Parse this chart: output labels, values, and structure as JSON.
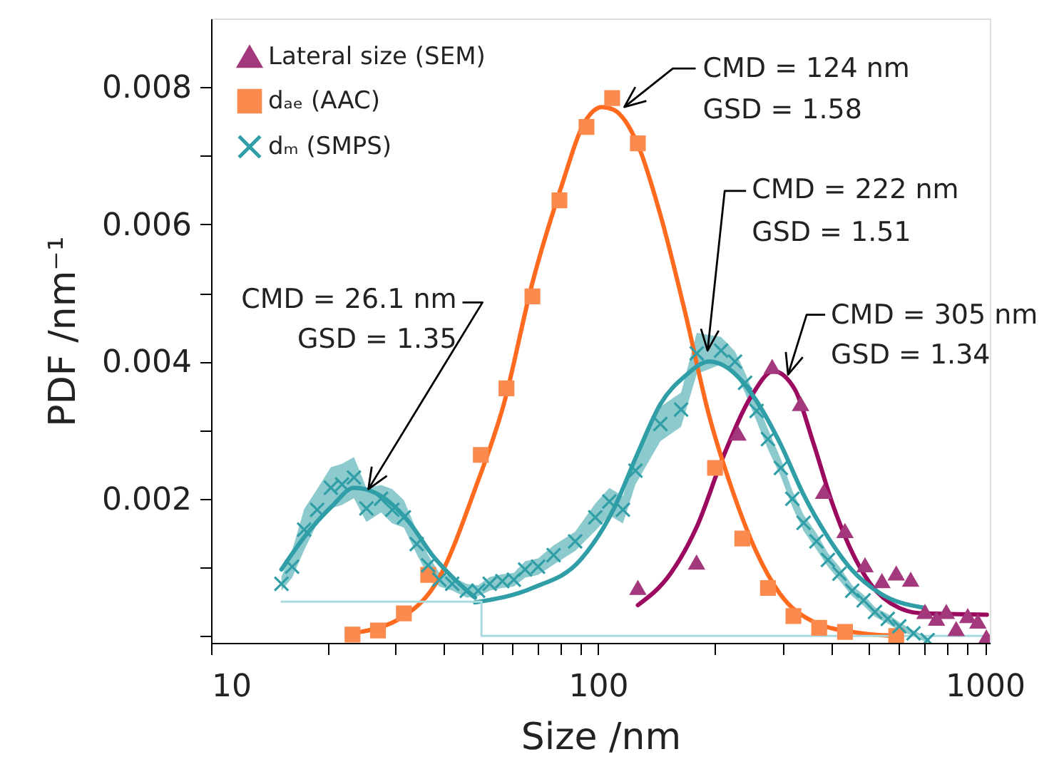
{
  "chart_data": {
    "type": "scatter",
    "xlabel": "Size /nm",
    "ylabel": "PDF /nm⁻¹",
    "log": "x",
    "legend": "top left",
    "xlim": [
      10,
      1030
    ],
    "xticks": [
      10,
      {
        "value": 20,
        "label": null
      },
      {
        "value": 30,
        "label": null
      },
      {
        "value": 40,
        "label": null
      },
      {
        "value": 50,
        "label": null
      },
      {
        "value": 60,
        "label": null
      },
      {
        "value": 70,
        "label": null
      },
      {
        "value": 80,
        "label": null
      },
      {
        "value": 90,
        "label": null
      },
      100,
      {
        "value": 200,
        "label": null
      },
      {
        "value": 300,
        "label": null
      },
      {
        "value": 400,
        "label": null
      },
      {
        "value": 500,
        "label": null
      },
      {
        "value": 600,
        "label": null
      },
      {
        "value": 700,
        "label": null
      },
      {
        "value": 800,
        "label": null
      },
      {
        "value": 900,
        "label": null
      },
      1000
    ],
    "ylim": [
      -0.0001,
      0.009
    ],
    "yticks": [
      {
        "value": 0,
        "label": null
      },
      {
        "value": 0.001,
        "label": null
      },
      0.002,
      {
        "value": 0.003,
        "label": null
      },
      0.004,
      {
        "value": 0.005,
        "label": null
      },
      0.006,
      {
        "value": 0.007,
        "label": null
      },
      0.008
    ],
    "series": [
      {
        "name": "Lateral size (SEM)",
        "marker": "triangle",
        "color": "#a3387c",
        "x": [
          126.8,
          179.8,
          230,
          282,
          334,
          383,
          435,
          490,
          542,
          590,
          643,
          700,
          750,
          795,
          843,
          903,
          959,
          1009
        ],
        "values": [
          0.0007,
          0.00107,
          0.00295,
          0.00392,
          0.00338,
          0.0021,
          0.00153,
          0.00103,
          0.0008,
          0.00091,
          0.00082,
          0.00035,
          0.00025,
          0.00035,
          0.0001,
          0.00029,
          0.00021,
          -2e-05
        ]
      },
      {
        "name": "dₐₑ (AAC)",
        "marker": "square",
        "color": "#fb8a4e",
        "x": [
          23.2,
          27.0,
          31.5,
          36.4,
          49.8,
          58.0,
          67.7,
          79.5,
          93.4,
          108.8,
          126.8,
          200.7,
          236,
          275,
          320,
          373,
          435,
          590
        ],
        "values": [
          2e-05,
          8e-05,
          0.00033,
          0.00089,
          0.00264,
          0.00361,
          0.00495,
          0.00635,
          0.00742,
          0.00784,
          0.00718,
          0.00245,
          0.00142,
          0.0007,
          0.00029,
          0.00012,
          6e-05,
          0.0
        ]
      },
      {
        "name": "dₘ (SMPS)",
        "marker": "cross",
        "color": "#2f9ea6",
        "x": [
          15.2,
          16.2,
          17.4,
          18.8,
          20.4,
          21.8,
          23.4,
          25.2,
          27.5,
          29.4,
          31.5,
          34.0,
          36.4,
          38.9,
          42.0,
          45.8,
          49.0,
          52.5,
          56.6,
          60.6,
          64.8,
          70.0,
          76.8,
          87.3,
          98.4,
          107,
          116,
          125,
          145,
          164,
          180,
          208,
          226,
          240,
          257,
          275,
          297,
          318,
          340,
          367,
          393,
          421,
          454,
          486,
          520,
          561,
          601,
          654,
          711
        ],
        "values": [
          0.00076,
          0.00101,
          0.00155,
          0.00184,
          0.00216,
          0.00221,
          0.00231,
          0.00186,
          0.002,
          0.00184,
          0.00173,
          0.00134,
          0.00103,
          0.00082,
          0.00076,
          0.00066,
          0.00066,
          0.00076,
          0.0008,
          0.00082,
          0.00097,
          0.00101,
          0.00118,
          0.00138,
          0.00173,
          0.00196,
          0.00184,
          0.00241,
          0.00309,
          0.0033,
          0.00412,
          0.00416,
          0.004,
          0.00369,
          0.00328,
          0.00287,
          0.00245,
          0.002,
          0.00165,
          0.00138,
          0.00111,
          0.00091,
          0.00066,
          0.00052,
          0.00035,
          0.00025,
          0.00014,
          4e-05,
          -6e-05
        ],
        "lower": [
          0.00066,
          0.00085,
          0.00125,
          0.00164,
          0.00186,
          0.00191,
          0.00201,
          0.00166,
          0.0018,
          0.00164,
          0.00158,
          0.00119,
          0.00088,
          0.00072,
          0.00066,
          0.00056,
          0.00058,
          0.00066,
          0.0007,
          0.00072,
          0.00085,
          0.00089,
          0.00104,
          0.00124,
          0.00153,
          0.00176,
          0.00164,
          0.00221,
          0.00284,
          0.00305,
          0.00382,
          0.00396,
          0.00385,
          0.00354,
          0.00313,
          0.00272,
          0.00232,
          0.00188,
          0.00153,
          0.00126,
          0.00101,
          0.00081,
          0.00058,
          0.00044,
          0.00028,
          0.00018,
          8e-05,
          0.0,
          -0.0001
        ],
        "upper": [
          0.00086,
          0.00125,
          0.00185,
          0.00214,
          0.00246,
          0.00251,
          0.00261,
          0.00216,
          0.0022,
          0.00214,
          0.00198,
          0.00154,
          0.00118,
          0.00092,
          0.00086,
          0.00076,
          0.00074,
          0.00086,
          0.0009,
          0.00092,
          0.00109,
          0.00113,
          0.00132,
          0.00152,
          0.00193,
          0.00216,
          0.00204,
          0.00261,
          0.00334,
          0.00355,
          0.00442,
          0.00436,
          0.00415,
          0.00384,
          0.00343,
          0.00302,
          0.00258,
          0.00212,
          0.00177,
          0.0015,
          0.00121,
          0.00101,
          0.00074,
          0.0006,
          0.00042,
          0.00032,
          0.0002,
          8e-05,
          -2e-05
        ]
      },
      {
        "type": "line",
        "color": "#9b0a5e",
        "x": [
          126.8,
          154,
          180,
          211,
          250,
          284,
          323,
          360,
          403,
          452,
          506,
          600,
          690,
          1012
        ],
        "values": [
          0.00045,
          0.00091,
          0.00159,
          0.00262,
          0.00351,
          0.00386,
          0.00359,
          0.00282,
          0.00194,
          0.00124,
          0.00076,
          0.00041,
          0.00033,
          0.00031
        ]
      },
      {
        "type": "line",
        "color": "#ff6a1f",
        "x": [
          23.2,
          31.5,
          38.6,
          48.1,
          57.1,
          67.7,
          80.2,
          92.6,
          102.5,
          109.8,
          126.8,
          145.3,
          167.6,
          193.6,
          222,
          256,
          295,
          360,
          478,
          600
        ],
        "values": [
          4e-05,
          0.00029,
          0.00082,
          0.00214,
          0.00338,
          0.00515,
          0.00653,
          0.0075,
          0.00771,
          0.00767,
          0.00716,
          0.00612,
          0.00474,
          0.00322,
          0.00214,
          0.00124,
          0.00062,
          0.00021,
          4e-05,
          0.0
        ]
      },
      {
        "type": "line",
        "color": "#2f9ea6",
        "x": [
          15.2,
          17.4,
          20.6,
          23.4,
          27.5,
          32.6,
          37.3,
          43.1,
          48.1
        ],
        "values": [
          0.00097,
          0.00144,
          0.0019,
          0.00216,
          0.00204,
          0.00165,
          0.00118,
          0.0008,
          0.00056
        ]
      },
      {
        "type": "line",
        "color": "#2f9ea6",
        "x": [
          48.1,
          67.7,
          90.1,
          110,
          127,
          145,
          168,
          194,
          222,
          256,
          295,
          340,
          393,
          452,
          537,
          700
        ],
        "values": [
          0.00049,
          0.0007,
          0.00111,
          0.00186,
          0.00268,
          0.00338,
          0.00379,
          0.004,
          0.00386,
          0.00344,
          0.00282,
          0.00206,
          0.00144,
          0.00097,
          0.00062,
          0.00041
        ]
      },
      {
        "type": "line",
        "color": "#a9dade",
        "x": [
          15.2,
          50,
          50,
          1030
        ],
        "values": [
          0.0005,
          0.0005,
          0.0,
          0.0
        ]
      }
    ],
    "annotations": [
      {
        "text": "CMD = 26.1 nm\nGSD = 1.35",
        "x": 25.5,
        "y": 0.00214
      },
      {
        "text": "CMD = 124 nm\nGSD = 1.58",
        "x": 117,
        "y": 0.00771
      },
      {
        "text": "CMD = 222 nm\nGSD = 1.51",
        "x": 192,
        "y": 0.00416
      },
      {
        "text": "CMD = 305 nm\nGSD = 1.34",
        "x": 310,
        "y": 0.00381
      }
    ]
  }
}
